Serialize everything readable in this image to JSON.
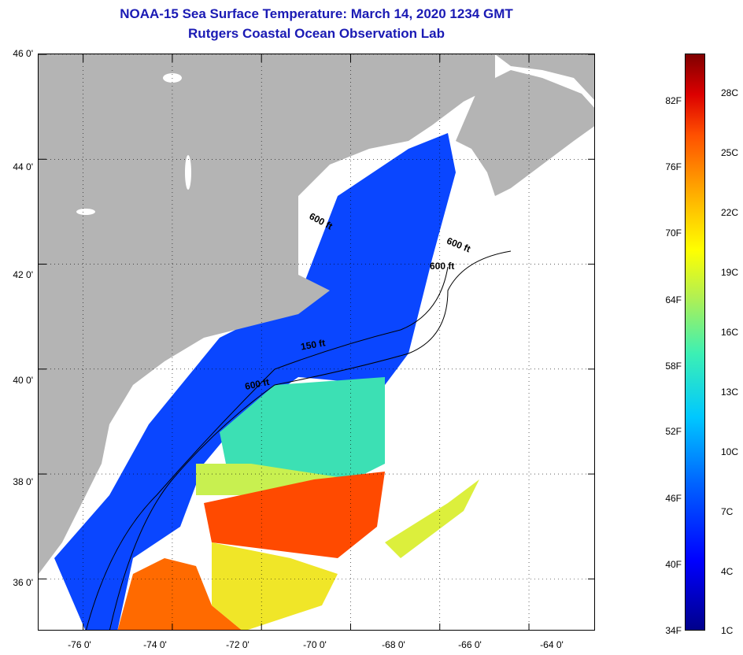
{
  "title": "NOAA-15 Sea Surface Temperature:  March 14, 2020 1234 GMT",
  "subtitle": "Rutgers Coastal Ocean Observation Lab",
  "lat_labels": [
    "46 0'",
    "44 0'",
    "42 0'",
    "40 0'",
    "38 0'",
    "36 0'"
  ],
  "lat_values": [
    46,
    44,
    42,
    40,
    38,
    36
  ],
  "lon_labels": [
    "-76 0'",
    "-74 0'",
    "-72 0'",
    "-70 0'",
    "-68 0'",
    "-66 0'",
    "-64 0'"
  ],
  "lon_values": [
    -76,
    -74,
    -72,
    -70,
    -68,
    -66,
    -64
  ],
  "map_extent": {
    "lon": [
      -77,
      -64.5
    ],
    "lat": [
      35,
      46
    ]
  },
  "contour_labels": [
    "600 ft",
    "600 ft",
    "600 ft",
    "150 ft",
    "600 ft"
  ],
  "colorbar": {
    "fahrenheit": [
      "82F",
      "76F",
      "70F",
      "64F",
      "58F",
      "52F",
      "46F",
      "40F",
      "34F"
    ],
    "celsius": [
      "28C",
      "25C",
      "22C",
      "19C",
      "16C",
      "13C",
      "10C",
      "7C",
      "4C",
      "1C"
    ]
  },
  "colors": {
    "title": "#1a1ab4",
    "land": "#b4b4b4",
    "cloud": "#ffffff",
    "cold": "#0a46ff",
    "warm": "#ff4a00"
  }
}
